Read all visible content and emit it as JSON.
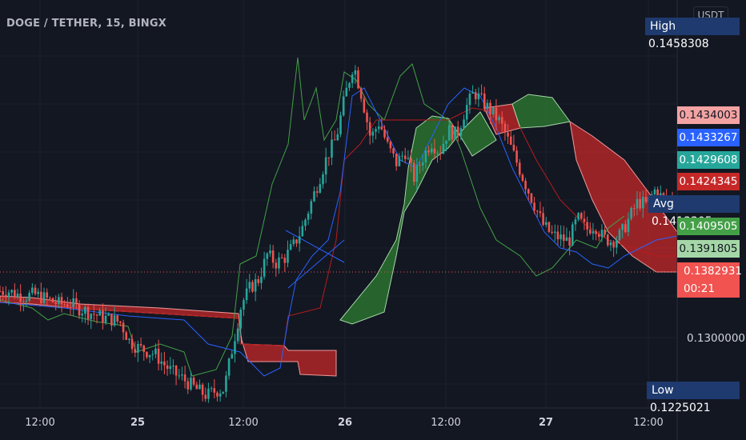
{
  "header": {
    "symbol_title": "DOGE / TETHER, 15, BINGX",
    "currency": "USDT"
  },
  "stats": {
    "high": {
      "label": "High",
      "value": "0.1458308"
    },
    "avg": {
      "label": "Avg",
      "value": "0.1413305"
    },
    "low": {
      "label": "Low",
      "value": "0.1225021"
    }
  },
  "price_labels": [
    {
      "name": "price-tag-1",
      "value": "0.1434003",
      "bg": "#f4a3a3",
      "fg": "#131722"
    },
    {
      "name": "price-tag-2",
      "value": "0.1433267",
      "bg": "#2962ff",
      "fg": "#ffffff"
    },
    {
      "name": "price-tag-3",
      "value": "0.1429608",
      "bg": "#26a69a",
      "fg": "#ffffff"
    },
    {
      "name": "price-tag-4",
      "value": "0.1424345",
      "bg": "#c62828",
      "fg": "#ffffff"
    },
    {
      "name": "price-tag-6",
      "value": "0.1409505",
      "bg": "#43a047",
      "fg": "#ffffff"
    },
    {
      "name": "price-tag-7",
      "value": "0.1391805",
      "bg": "#a5d6a7",
      "fg": "#131722"
    }
  ],
  "current_price": {
    "value": "0.1382931",
    "countdown": "00:21",
    "color": "#f05350"
  },
  "colors": {
    "background": "#131722",
    "grid": "#1e222d",
    "up": "#26a69a",
    "down": "#ef5350",
    "conversion": "#2962ff",
    "base": "#b71c1c",
    "lagging": "#43a047",
    "cloud_bull": "#2e7d32",
    "cloud_bear": "#c62828",
    "span_a": "#a5d6a7",
    "span_b": "#ef9a9a"
  },
  "chart_data": {
    "type": "candlestick",
    "indicator": "ichimoku",
    "x_ticks": [
      "12:00",
      "25",
      "12:00",
      "26",
      "12:00",
      "27",
      "12:00"
    ],
    "y_ticks": [
      "0.1300000"
    ],
    "ylim": [
      0.122,
      0.1475
    ],
    "grid": true,
    "close_path": [
      0.1328,
      0.1328,
      0.1326,
      0.1325,
      0.1326,
      0.1324,
      0.1322,
      0.132,
      0.1321,
      0.1318,
      0.1316,
      0.1314,
      0.1312,
      0.1311,
      0.1309,
      0.1298,
      0.1294,
      0.1292,
      0.129,
      0.1284,
      0.1279,
      0.1276,
      0.1272,
      0.1268,
      0.1265,
      0.1268,
      0.1269,
      0.1295,
      0.132,
      0.133,
      0.1335,
      0.135,
      0.1345,
      0.1348,
      0.1355,
      0.1365,
      0.138,
      0.1395,
      0.141,
      0.142,
      0.1445,
      0.1465,
      0.1445,
      0.142,
      0.143,
      0.1415,
      0.1405,
      0.1412,
      0.1396,
      0.1408,
      0.1418,
      0.1412,
      0.1425,
      0.1422,
      0.1438,
      0.1448,
      0.1442,
      0.1436,
      0.143,
      0.1418,
      0.1405,
      0.1392,
      0.138,
      0.1368,
      0.1362,
      0.136,
      0.1358,
      0.1372,
      0.1365,
      0.1368,
      0.136,
      0.1358,
      0.1362,
      0.1372,
      0.1382,
      0.138,
      0.1389,
      0.1383,
      0.1383
    ],
    "close_x_range": [
      0,
      840
    ]
  }
}
